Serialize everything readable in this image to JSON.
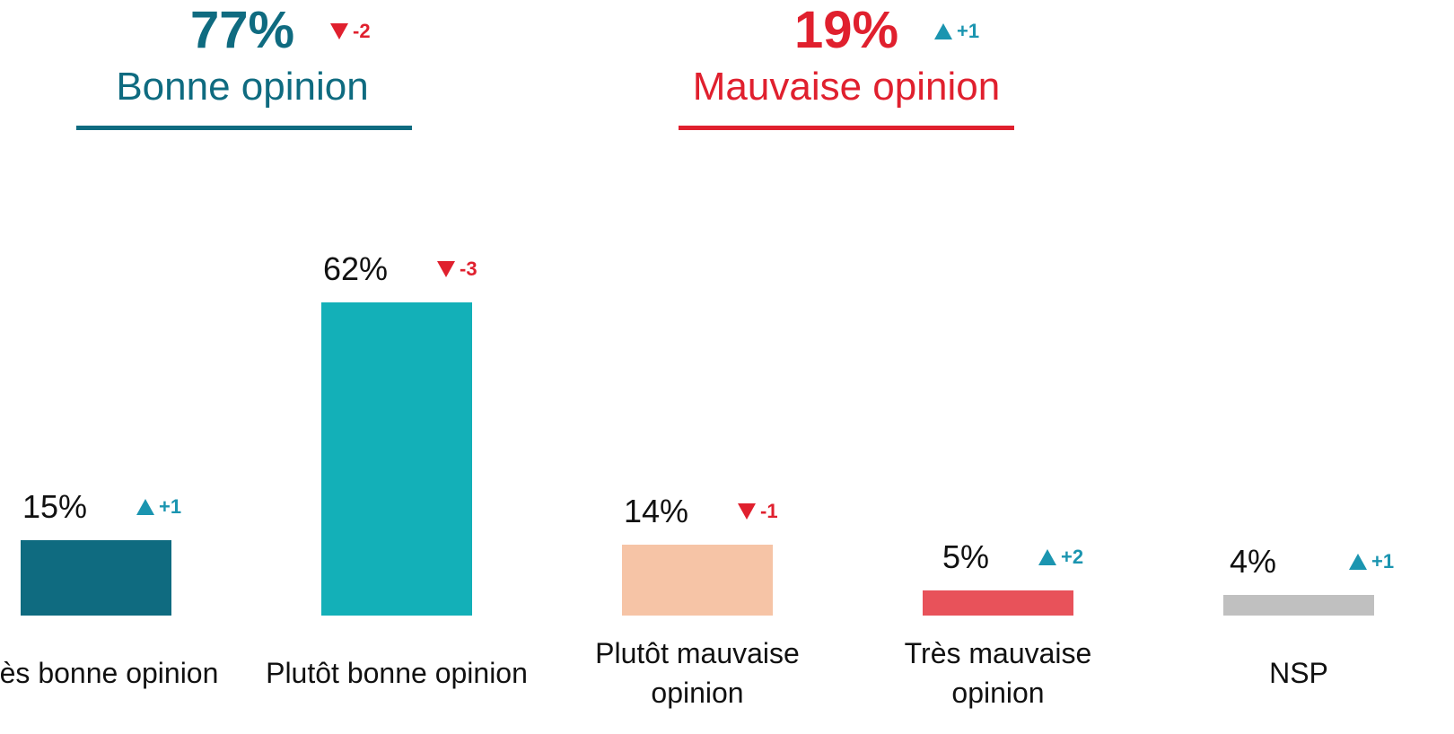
{
  "chart_data": {
    "type": "bar",
    "summary": [
      {
        "name": "Bonne opinion",
        "value": 77,
        "label": "77%",
        "change": -2,
        "change_label": "-2",
        "color": "#0f6b80"
      },
      {
        "name": "Mauvaise opinion",
        "value": 19,
        "label": "19%",
        "change": 1,
        "change_label": "+1",
        "color": "#e0202e"
      }
    ],
    "categories": [
      "Très bonne opinion",
      "Plutôt bonne opinion",
      "Plutôt mauvaise opinion",
      "Très mauvaise opinion",
      "NSP"
    ],
    "values": [
      15,
      62,
      14,
      5,
      4
    ],
    "value_labels": [
      "15%",
      "62%",
      "14%",
      "5%",
      "4%"
    ],
    "changes": [
      1,
      -3,
      -1,
      2,
      1
    ],
    "change_labels": [
      "+1",
      "-3",
      "-1",
      "+2",
      "+1"
    ],
    "colors": [
      "#0f6b80",
      "#13b0b8",
      "#f6c4a6",
      "#e8525a",
      "#c0c0c0"
    ],
    "up_color": "#1b95b0",
    "down_color": "#e0202e",
    "ylim": [
      0,
      100
    ]
  }
}
